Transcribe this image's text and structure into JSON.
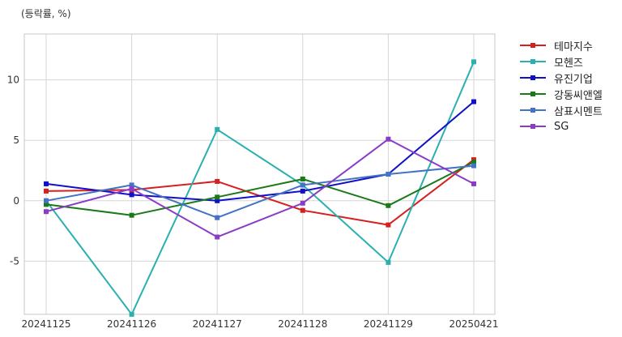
{
  "chart_data": {
    "type": "line",
    "unit_label": "(등락률, %)",
    "categories": [
      "20241125",
      "20241126",
      "20241127",
      "20241128",
      "20241129",
      "20250421"
    ],
    "ylim": [
      -9.4,
      13.8
    ],
    "yticks": [
      -5,
      0,
      5,
      10
    ],
    "grid": true,
    "legend_position": "right",
    "series": [
      {
        "name": "테마지수",
        "color": "#d62020",
        "values": [
          0.8,
          0.9,
          1.6,
          -0.8,
          -2.0,
          3.4
        ]
      },
      {
        "name": "모헨즈",
        "color": "#2ab0b0",
        "values": [
          0.0,
          -9.4,
          5.9,
          1.3,
          -5.1,
          11.5
        ]
      },
      {
        "name": "유진기업",
        "color": "#1010c8",
        "values": [
          1.4,
          0.5,
          0.0,
          0.8,
          2.2,
          8.2
        ]
      },
      {
        "name": "강동씨앤엘",
        "color": "#1a7a1a",
        "values": [
          -0.3,
          -1.2,
          0.3,
          1.8,
          -0.4,
          3.2
        ]
      },
      {
        "name": "삼표시멘트",
        "color": "#4472c4",
        "values": [
          0.0,
          1.3,
          -1.4,
          1.3,
          2.2,
          2.9
        ]
      },
      {
        "name": "SG",
        "color": "#8a3cc8",
        "values": [
          -0.9,
          1.0,
          -3.0,
          -0.2,
          5.1,
          1.4
        ]
      }
    ]
  }
}
